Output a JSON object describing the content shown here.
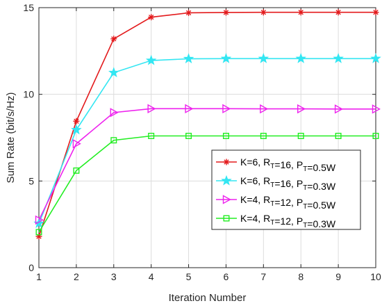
{
  "chart_data": {
    "type": "line",
    "xlabel": "Iteration Number",
    "ylabel": "Sum Rate (bit/s/Hz)",
    "xlim": [
      1,
      10
    ],
    "ylim": [
      0,
      15
    ],
    "xticks": [
      1,
      2,
      3,
      4,
      5,
      6,
      7,
      8,
      9,
      10
    ],
    "yticks": [
      0,
      5,
      10,
      15
    ],
    "grid": true,
    "legend_position": "center-right",
    "x": [
      1,
      2,
      3,
      4,
      5,
      6,
      7,
      8,
      9,
      10
    ],
    "series": [
      {
        "name": "K=6, R_T=16, P_T=0.5W",
        "label_parts": [
          {
            "t": "K=6, R"
          },
          {
            "t": "T",
            "sub": true
          },
          {
            "t": "=16, P"
          },
          {
            "t": "T",
            "sub": true
          },
          {
            "t": "=0.5W"
          }
        ],
        "color": "#e31a1c",
        "marker": "asterisk",
        "values": [
          1.8,
          8.45,
          13.2,
          14.45,
          14.7,
          14.72,
          14.73,
          14.73,
          14.73,
          14.73
        ]
      },
      {
        "name": "K=6, R_T=16, P_T=0.3W",
        "label_parts": [
          {
            "t": "K=6, R"
          },
          {
            "t": "T",
            "sub": true
          },
          {
            "t": "=16, P"
          },
          {
            "t": "T",
            "sub": true
          },
          {
            "t": "=0.3W"
          }
        ],
        "color": "#33e6f2",
        "marker": "star",
        "values": [
          2.55,
          7.95,
          11.25,
          11.95,
          12.05,
          12.06,
          12.06,
          12.06,
          12.06,
          12.06
        ]
      },
      {
        "name": "K=4, R_T=12, P_T=0.5W",
        "label_parts": [
          {
            "t": "K=4, R"
          },
          {
            "t": "T",
            "sub": true
          },
          {
            "t": "=12, P"
          },
          {
            "t": "T",
            "sub": true
          },
          {
            "t": "=0.5W"
          }
        ],
        "color": "#ee22ee",
        "marker": "triangle-right",
        "values": [
          2.75,
          7.15,
          8.95,
          9.17,
          9.17,
          9.17,
          9.16,
          9.16,
          9.15,
          9.15
        ]
      },
      {
        "name": "K=4, R_T=12, P_T=0.3W",
        "label_parts": [
          {
            "t": "K=4, R"
          },
          {
            "t": "T",
            "sub": true
          },
          {
            "t": "=12, P"
          },
          {
            "t": "T",
            "sub": true
          },
          {
            "t": "=0.3W"
          }
        ],
        "color": "#22ee22",
        "marker": "square",
        "values": [
          2.05,
          5.6,
          7.35,
          7.6,
          7.6,
          7.6,
          7.6,
          7.6,
          7.6,
          7.6
        ]
      }
    ]
  }
}
